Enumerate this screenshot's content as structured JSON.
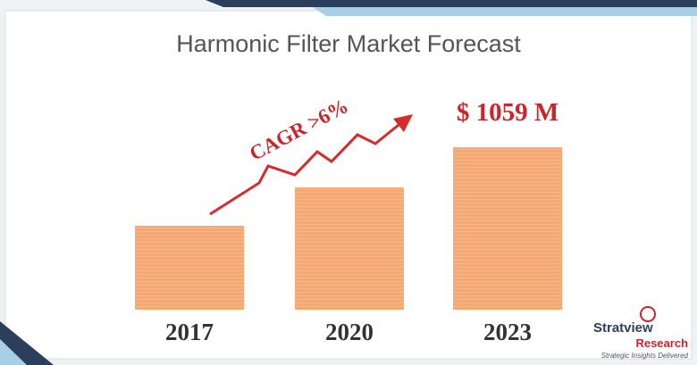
{
  "chart_data": {
    "type": "bar",
    "title": "Harmonic Filter Market Forecast",
    "categories": [
      "2017",
      "2020",
      "2023"
    ],
    "values": [
      547,
      797,
      1059
    ],
    "value_labels": [
      null,
      null,
      "$ 1059 M"
    ],
    "color": "#f4a874",
    "annotation": "CAGR >6%"
  },
  "logo": {
    "name_part1": "Stratview",
    "name_part2": "Research",
    "tagline": "Strategic Insights Delivered"
  }
}
